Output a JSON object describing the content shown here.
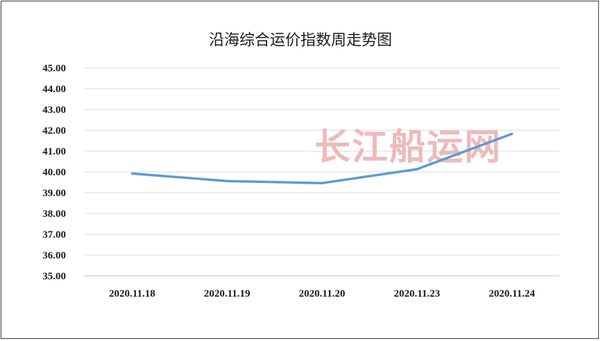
{
  "chart_data": {
    "type": "line",
    "title": "沿海综合运价指数周走势图",
    "xlabel": "",
    "ylabel": "",
    "categories": [
      "2020.11.18",
      "2020.11.19",
      "2020.11.20",
      "2020.11.23",
      "2020.11.24"
    ],
    "series": [
      {
        "values": [
          39.92,
          39.56,
          39.46,
          40.13,
          41.83
        ]
      }
    ],
    "ylim": [
      35,
      45
    ],
    "yticks": [
      "35.00",
      "36.00",
      "37.00",
      "38.00",
      "39.00",
      "40.00",
      "41.00",
      "42.00",
      "43.00",
      "44.00",
      "45.00"
    ],
    "grid": true,
    "legend": "none",
    "line_color": "#5b9bd5",
    "grid_color": "#d9d9d9"
  },
  "watermark": "长江船运网"
}
